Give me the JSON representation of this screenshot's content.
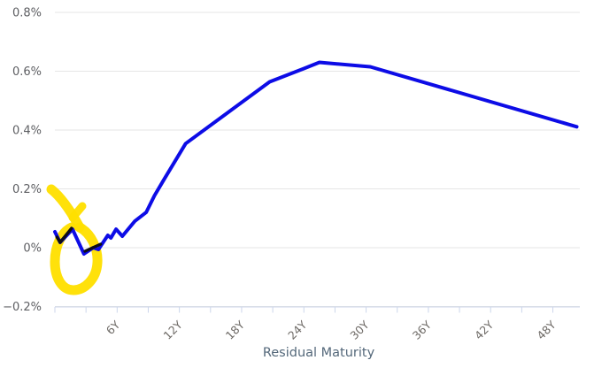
{
  "chart_data": {
    "type": "line",
    "title": "",
    "x_axis": {
      "title": "Residual Maturity",
      "unit": "years",
      "min": 0,
      "max": 50.6,
      "minor_tick_interval": 3,
      "labeled_ticks": [
        6,
        12,
        18,
        24,
        30,
        36,
        42,
        48
      ],
      "tick_labels": [
        "6Y",
        "12Y",
        "18Y",
        "24Y",
        "30Y",
        "36Y",
        "42Y",
        "48Y"
      ]
    },
    "y_axis": {
      "title": "",
      "unit": "percent",
      "min": -0.2,
      "max": 0.8,
      "grid": true,
      "tick_values": [
        -0.2,
        0,
        0.2,
        0.4,
        0.6,
        0.8
      ],
      "tick_labels": [
        "−0.2%",
        "0%",
        "0.2%",
        "0.4%",
        "0.6%",
        "0.8%"
      ]
    },
    "series": [
      {
        "name": "yield-curve",
        "color": "#0d0ce6",
        "width": 4,
        "points": [
          [
            0,
            0.054
          ],
          [
            0.5,
            0.018
          ],
          [
            1.7,
            0.063
          ],
          [
            2.8,
            -0.021
          ],
          [
            3.7,
            0.0
          ],
          [
            4.2,
            -0.006
          ],
          [
            5.1,
            0.042
          ],
          [
            5.4,
            0.033
          ],
          [
            5.9,
            0.063
          ],
          [
            6.5,
            0.039
          ],
          [
            7.7,
            0.09
          ],
          [
            8.8,
            0.12
          ],
          [
            9.6,
            0.177
          ],
          [
            10.5,
            0.231
          ],
          [
            12.6,
            0.354
          ],
          [
            20.7,
            0.564
          ],
          [
            24,
            0.609
          ],
          [
            25.5,
            0.63
          ],
          [
            30.4,
            0.615
          ],
          [
            50.3,
            0.411
          ]
        ]
      },
      {
        "name": "short-end-dark-overlay",
        "color": "#0c0c18",
        "width": 3.4,
        "segments": [
          [
            [
              0.2,
              0.036
            ],
            [
              0.5,
              0.018
            ],
            [
              1.6,
              0.066
            ]
          ],
          [
            [
              2.9,
              -0.012
            ],
            [
              4.4,
              0.012
            ]
          ]
        ]
      }
    ],
    "annotation": {
      "name": "hand-drawn-highlight-circle",
      "color": "#ffe000",
      "highlights": "short-maturity dip near 0%"
    },
    "legend": {
      "visible": false
    }
  },
  "colors": {
    "background": "#ffffff",
    "grid": "#e6e6e6",
    "axis_line": "#ccd6eb",
    "tick_label": "#666666",
    "axis_title": "#54687a"
  }
}
